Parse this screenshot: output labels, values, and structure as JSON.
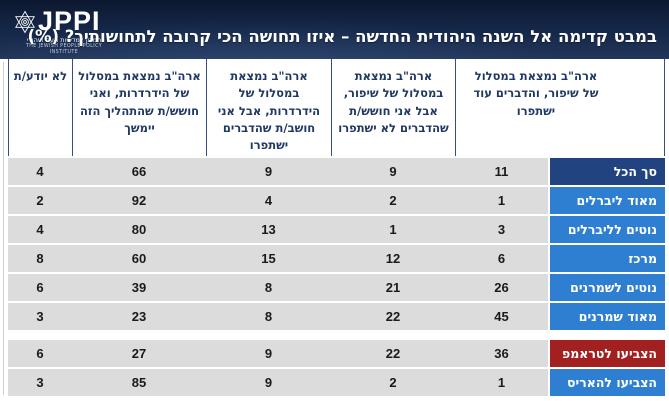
{
  "header": {
    "title": "במבט קדימה אל השנה היהודית החדשה – איזו תחושה הכי קרובה לתחושותיך? (%)"
  },
  "logo": {
    "brand": "JPPI",
    "tagline_he": "המכון למדיניות העם היהודי",
    "tagline_en": "THE JEWISH PEOPLE POLICY INSTITUTE"
  },
  "colors": {
    "banner_top": "#0c1830",
    "banner_bottom": "#223659",
    "header_text_navy": "#1f3864",
    "divider_navy": "#31507f",
    "row_bg_gray": "#dcdcdc",
    "label_navy": "#21437f",
    "label_blue": "#2e7fd1",
    "label_red": "#a32020"
  },
  "chart_data": {
    "type": "table",
    "title": "במבט קדימה אל השנה היהודית החדשה – איזו תחושה הכי קרובה לתחושותיך? (%)",
    "columns_order": "right-to-left",
    "columns": [
      "ארה\"ב נמצאת במסלול של שיפור, והדברים עוד ישתפרו",
      "ארה\"ב נמצאת במסלול של שיפור, אבל אני חושש/ת שהדברים לא ישתפרו",
      "ארה\"ב נמצאת במסלול של הידרדרות, אבל אני חושב/ת שהדברים ישתפרו",
      "ארה\"ב נמצאת במסלול של הידרדרות, ואני חושש/ת שהתהליך הזה יימשך",
      "לא יודע/ת"
    ],
    "groups": [
      {
        "rows": [
          {
            "label": "סך הכל",
            "color": "navy",
            "values": [
              11,
              9,
              9,
              66,
              4
            ]
          },
          {
            "label": "מאוד ליברלים",
            "color": "blue",
            "values": [
              1,
              2,
              4,
              92,
              2
            ]
          },
          {
            "label": "נוטים לליברלים",
            "color": "blue",
            "values": [
              3,
              1,
              13,
              80,
              4
            ]
          },
          {
            "label": "מרכז",
            "color": "blue",
            "values": [
              6,
              12,
              15,
              60,
              8
            ]
          },
          {
            "label": "נוטים לשמרנים",
            "color": "blue",
            "values": [
              26,
              21,
              8,
              39,
              6
            ]
          },
          {
            "label": "מאוד שמרנים",
            "color": "blue",
            "values": [
              45,
              22,
              8,
              23,
              3
            ]
          }
        ]
      },
      {
        "rows": [
          {
            "label": "הצביעו לטראמפ",
            "color": "red",
            "values": [
              36,
              22,
              9,
              27,
              6
            ]
          },
          {
            "label": "הצביעו להאריס",
            "color": "blue",
            "values": [
              1,
              2,
              9,
              85,
              3
            ]
          }
        ]
      }
    ]
  }
}
